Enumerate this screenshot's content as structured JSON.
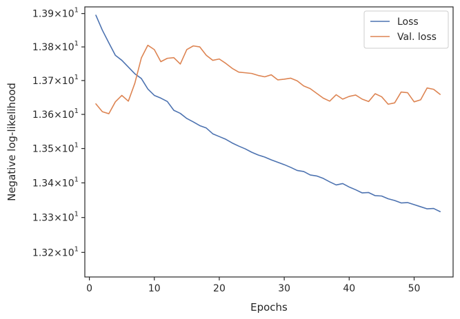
{
  "chart_data": {
    "type": "line",
    "title": "",
    "xlabel": "Epochs",
    "ylabel": "Negative log-likelihood",
    "y_scale": "log",
    "grid": false,
    "legend_position": "top-right",
    "xlim": [
      -0.7,
      56
    ],
    "ylim": [
      13.13,
      13.92
    ],
    "x_ticks": [
      0,
      10,
      20,
      30,
      40,
      50
    ],
    "y_ticks": [
      {
        "value": 13.9,
        "mantissa": "1.39",
        "base": "10",
        "exponent": "1"
      },
      {
        "value": 13.8,
        "mantissa": "1.38",
        "base": "10",
        "exponent": "1"
      },
      {
        "value": 13.7,
        "mantissa": "1.37",
        "base": "10",
        "exponent": "1"
      },
      {
        "value": 13.6,
        "mantissa": "1.36",
        "base": "10",
        "exponent": "1"
      },
      {
        "value": 13.5,
        "mantissa": "1.35",
        "base": "10",
        "exponent": "1"
      },
      {
        "value": 13.4,
        "mantissa": "1.34",
        "base": "10",
        "exponent": "1"
      },
      {
        "value": 13.3,
        "mantissa": "1.33",
        "base": "10",
        "exponent": "1"
      },
      {
        "value": 13.2,
        "mantissa": "1.32",
        "base": "10",
        "exponent": "1"
      }
    ],
    "x": [
      1,
      2,
      3,
      4,
      5,
      6,
      7,
      8,
      9,
      10,
      11,
      12,
      13,
      14,
      15,
      16,
      17,
      18,
      19,
      20,
      21,
      22,
      23,
      24,
      25,
      26,
      27,
      28,
      29,
      30,
      31,
      32,
      33,
      34,
      35,
      36,
      37,
      38,
      39,
      40,
      41,
      42,
      43,
      44,
      45,
      46,
      47,
      48,
      49,
      50,
      51,
      52,
      53,
      54
    ],
    "series": [
      {
        "name": "Loss",
        "color": "#4c72b0",
        "values": [
          13.895,
          13.85,
          13.812,
          13.775,
          13.76,
          13.74,
          13.72,
          13.706,
          13.675,
          13.656,
          13.648,
          13.638,
          13.612,
          13.603,
          13.588,
          13.578,
          13.567,
          13.56,
          13.543,
          13.535,
          13.527,
          13.516,
          13.507,
          13.499,
          13.489,
          13.481,
          13.475,
          13.467,
          13.46,
          13.453,
          13.445,
          13.436,
          13.433,
          13.423,
          13.42,
          13.413,
          13.403,
          13.394,
          13.398,
          13.388,
          13.38,
          13.371,
          13.372,
          13.363,
          13.362,
          13.354,
          13.349,
          13.342,
          13.343,
          13.337,
          13.331,
          13.325,
          13.326,
          13.317
        ]
      },
      {
        "name": "Val. loss",
        "color": "#dd8452",
        "values": [
          13.631,
          13.608,
          13.602,
          13.637,
          13.656,
          13.639,
          13.692,
          13.767,
          13.805,
          13.792,
          13.756,
          13.766,
          13.768,
          13.749,
          13.792,
          13.803,
          13.8,
          13.775,
          13.76,
          13.764,
          13.751,
          13.736,
          13.725,
          13.723,
          13.721,
          13.715,
          13.711,
          13.717,
          13.702,
          13.704,
          13.707,
          13.699,
          13.684,
          13.676,
          13.662,
          13.648,
          13.639,
          13.658,
          13.645,
          13.653,
          13.657,
          13.645,
          13.638,
          13.661,
          13.652,
          13.63,
          13.634,
          13.666,
          13.664,
          13.637,
          13.643,
          13.678,
          13.674,
          13.659
        ]
      }
    ]
  }
}
